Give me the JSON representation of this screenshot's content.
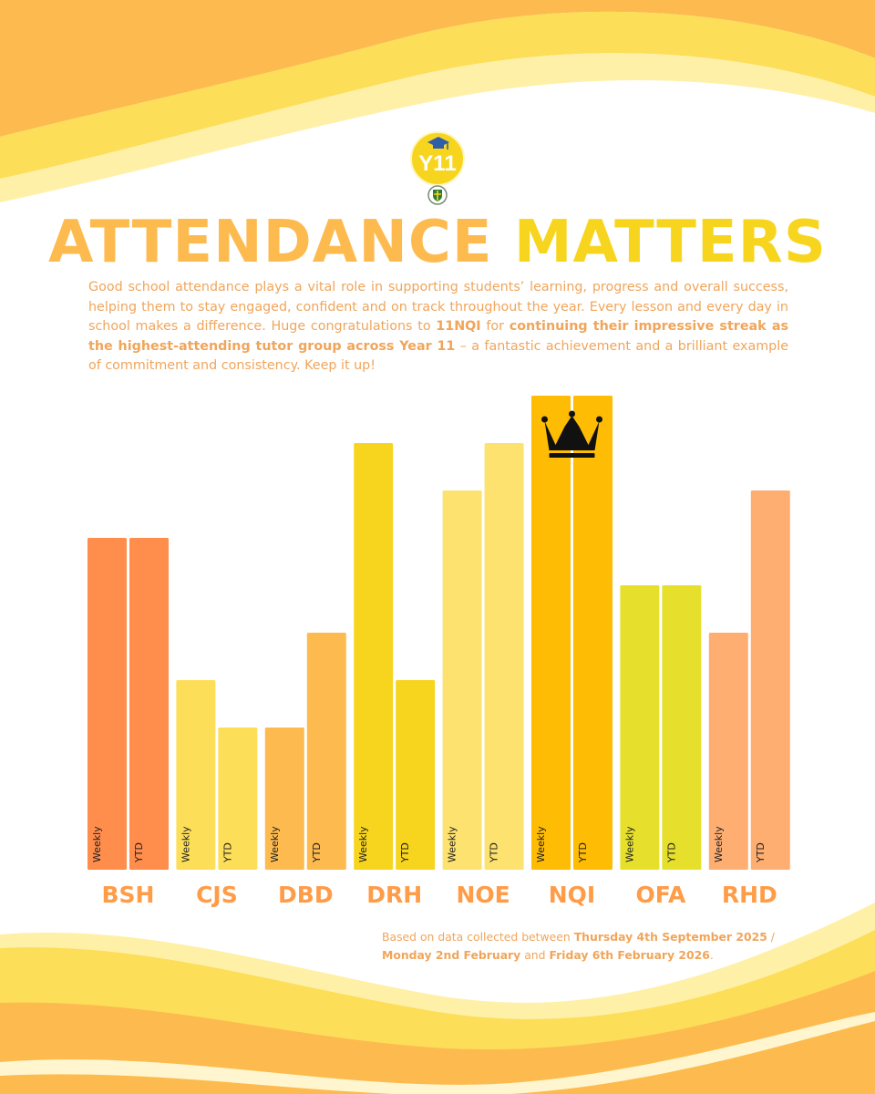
{
  "colors": {
    "orange": "#FF8D4C",
    "yellow_light": "#FDDE59",
    "amber": "#FDBB4F",
    "gold": "#F7D51F",
    "pale_yellow": "#FDE26F",
    "deep_gold": "#FEBC05",
    "lime": "#E6E02C",
    "peach": "#FFAE72",
    "text": "#F0A55B"
  },
  "logo": {
    "badge_text": "Y11",
    "icon": "graduation-cap-icon"
  },
  "header": {
    "title_part1": "ATTENDANCE",
    "title_part2": "MATTERS"
  },
  "intro": {
    "p1": "Good school attendance plays a vital role in supporting students’ learning, progress and overall success, helping them to stay engaged, confident and on track throughout the year. Every lesson and every day in school makes a difference. Huge congratulations to ",
    "group": "11NQI",
    "p2": " for ",
    "highlight": "continuing their impressive streak as the highest-attending tutor group across Year 11",
    "p3": " – a fantastic achievement and a brilliant example of commitment and consistency. Keep it up!"
  },
  "chart_data": {
    "type": "bar",
    "title": "",
    "xlabel": "",
    "ylabel": "",
    "categories": [
      "BSH",
      "CJS",
      "DBD",
      "DRH",
      "NOE",
      "NQI",
      "OFA",
      "RHD"
    ],
    "series": [
      {
        "name": "Weekly",
        "values": [
          7,
          4,
          3,
          9,
          8,
          10,
          6,
          5
        ]
      },
      {
        "name": "YTD",
        "values": [
          7,
          3,
          5,
          4,
          9,
          10,
          6,
          8
        ]
      }
    ],
    "bar_colors": [
      "#FF8D4C",
      "#FDDE59",
      "#FDBB4F",
      "#F7D51F",
      "#FDE26F",
      "#FEBC05",
      "#E6E02C",
      "#FFAE72"
    ],
    "note": "Values are relative rank heights; the chart shows no numeric axis.",
    "winner": "NQI",
    "winner_icon": "crown-icon",
    "ylim": [
      0,
      10
    ]
  },
  "footnote": {
    "prefix": "Based on data collected between ",
    "start": "Thursday 4th September 2025",
    "sep": " / ",
    "week_start": "Monday 2nd February",
    "and": " and ",
    "end": "Friday 6th February 2026",
    "suffix": "."
  }
}
